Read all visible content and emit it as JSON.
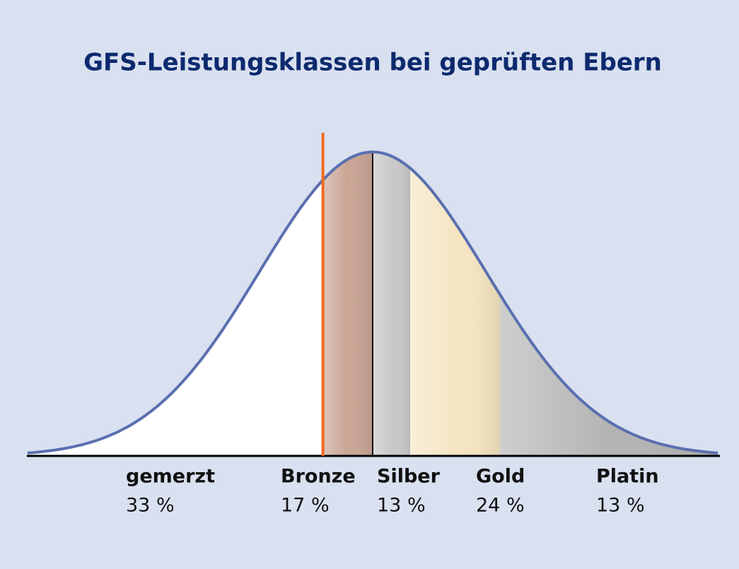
{
  "chart_data": {
    "type": "bell",
    "title": "GFS-Leistungsklassen bei geprüften Ebern",
    "categories": [
      "gemerzt",
      "Bronze",
      "Silber",
      "Gold",
      "Platin"
    ],
    "values": [
      33,
      17,
      13,
      24,
      13
    ],
    "value_labels": [
      "33 %",
      "17 %",
      "13 %",
      "24 %",
      "13 %"
    ],
    "colors": [
      "#ffffff",
      "#c9a595",
      "#c8c8c8",
      "#f5e5c2",
      "#b4b4b4"
    ]
  }
}
